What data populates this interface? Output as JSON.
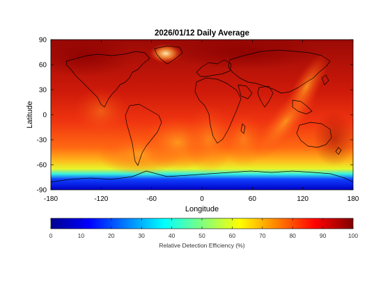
{
  "title": "2026/01/12 Daily Average",
  "map": {
    "xlabel": "Longitude",
    "ylabel": "Latitude",
    "xlim": [
      -180,
      180
    ],
    "ylim": [
      -90,
      90
    ],
    "xticks": [
      "-180",
      "-120",
      "-60",
      "0",
      "60",
      "120",
      "180"
    ],
    "yticks": [
      "90",
      "60",
      "30",
      "0",
      "-30",
      "-60",
      "-90"
    ],
    "xtick_values": [
      -180,
      -120,
      -60,
      0,
      60,
      120,
      180
    ],
    "ytick_values": [
      90,
      60,
      30,
      0,
      -30,
      -60,
      -90
    ],
    "coastlines": "black",
    "field": "relative-detection-efficiency"
  },
  "colorbar": {
    "label": "Relative Detection Efficiency (%)",
    "ticks": [
      "0",
      "10",
      "20",
      "30",
      "40",
      "50",
      "60",
      "70",
      "80",
      "90",
      "100"
    ],
    "tick_values": [
      0,
      10,
      20,
      30,
      40,
      50,
      60,
      70,
      80,
      90,
      100
    ],
    "range": [
      0,
      100
    ],
    "colormap": "jet",
    "colors": [
      "#00008f",
      "#0000ff",
      "#00ffff",
      "#ffff00",
      "#ff0000",
      "#800000"
    ]
  }
}
